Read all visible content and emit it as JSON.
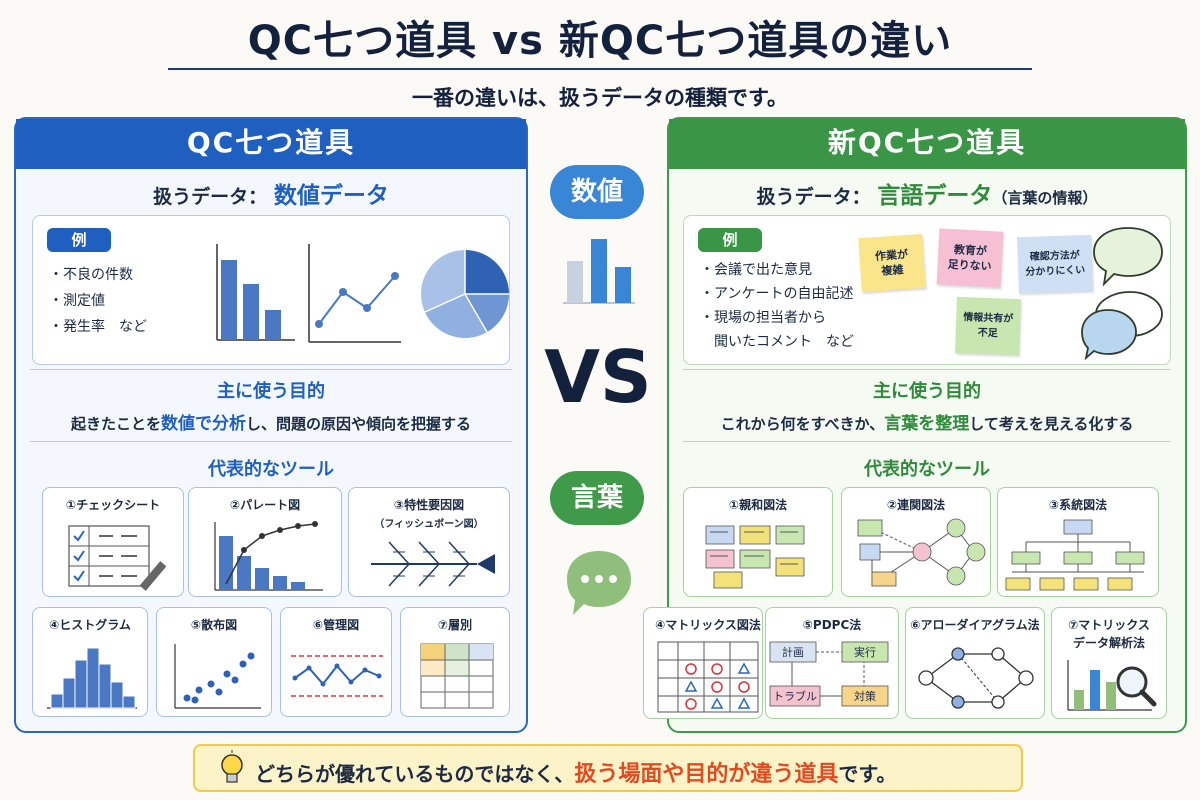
{
  "header": {
    "title": "QC七つ道具 vs 新QC七つ道具の違い",
    "subtitle": "一番の違いは、扱うデータの種類です。"
  },
  "left": {
    "title": "QC七つ道具",
    "data_label": "扱うデータ：",
    "data_type": "数値データ",
    "example_tag": "例",
    "examples": [
      "・不良の件数",
      "・測定値",
      "・発生率　など"
    ],
    "purpose_title": "主に使う目的",
    "purpose_pre": "起きたことを",
    "purpose_kw": "数値で分析",
    "purpose_post": "し、問題の原因や傾向を把握する",
    "tools_title": "代表的なツール",
    "tools": [
      "①チェックシート",
      "②パレート図",
      "③特性要因図",
      "（フィッシュボーン図）",
      "④ヒストグラム",
      "⑤散布図",
      "⑥管理図",
      "⑦層別"
    ]
  },
  "right": {
    "title": "新QC七つ道具",
    "data_label": "扱うデータ：",
    "data_type": "言語データ",
    "data_note": "（言葉の情報）",
    "example_tag": "例",
    "examples": [
      "・会議で出た意見",
      "・アンケートの自由記述",
      "・現場の担当者から",
      "　聞いたコメント　など"
    ],
    "sticky_notes": [
      "作業が\n複雑",
      "教育が\n足りない",
      "確認方法が\n分かりにくい",
      "情報共有が\n不足"
    ],
    "purpose_title": "主に使う目的",
    "purpose_pre": "これから何をすべきか、",
    "purpose_kw": "言葉を整理",
    "purpose_post": "して考えを見える化する",
    "tools_title": "代表的なツール",
    "tools": [
      "①親和図法",
      "②連関図法",
      "③系統図法",
      "④マトリックス図法",
      "⑤PDPC法",
      "⑥アローダイアグラム法",
      "⑦マトリックス",
      "データ解析法"
    ],
    "pdpc_labels": [
      "計画",
      "実行",
      "トラブル",
      "対策"
    ]
  },
  "center": {
    "badge_top": "数値",
    "vs": "VS",
    "badge_bottom": "言葉"
  },
  "footer": {
    "pre": "どちらが優れているものではなく、",
    "kw": "扱う場面や目的が違う道具",
    "post": "です。"
  },
  "colors": {
    "blue": "#1e5fc0",
    "green": "#3a9646",
    "accent": "#e24a1f"
  }
}
